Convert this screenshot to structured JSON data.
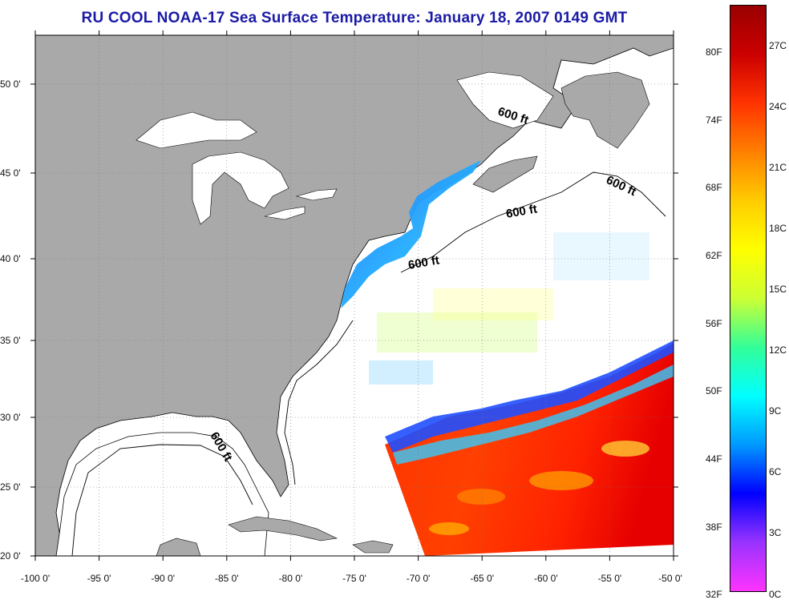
{
  "title": "RU COOL  NOAA-17  Sea Surface Temperature:  January 18, 2007 0149 GMT",
  "map": {
    "lon_range": [
      -100,
      -50
    ],
    "lat_range": [
      20,
      52.5
    ],
    "lon_ticks": [
      "-100 0'",
      "-95 0'",
      "-90 0'",
      "-85 0'",
      "-80 0'",
      "-75 0'",
      "-70 0'",
      "-65 0'",
      "-60 0'",
      "-55 0'",
      "-50 0'"
    ],
    "lat_ticks": [
      "20 0'",
      "25 0'",
      "30 0'",
      "35 0'",
      "40 0'",
      "45 0'",
      "50 0'"
    ],
    "land_color": "#a9a9a9",
    "ocean_color": "#ffffff",
    "grid": "dotted",
    "contour_labels": [
      "600 ft",
      "600 ft",
      "600 ft",
      "600 ft",
      "600 ft"
    ]
  },
  "colorbar": {
    "colors": [
      "#ff33ff",
      "#9933ff",
      "#0000ff",
      "#0099ff",
      "#00ffff",
      "#33ff99",
      "#ccff33",
      "#ffff00",
      "#ffcc00",
      "#ff8000",
      "#ff3300",
      "#cc0000",
      "#990000"
    ],
    "fahrenheit_labels": [
      "80F",
      "74F",
      "68F",
      "62F",
      "56F",
      "50F",
      "44F",
      "38F",
      "32F"
    ],
    "celsius_labels": [
      "27C",
      "24C",
      "21C",
      "18C",
      "15C",
      "12C",
      "9C",
      "6C",
      "3C",
      "0C"
    ]
  }
}
